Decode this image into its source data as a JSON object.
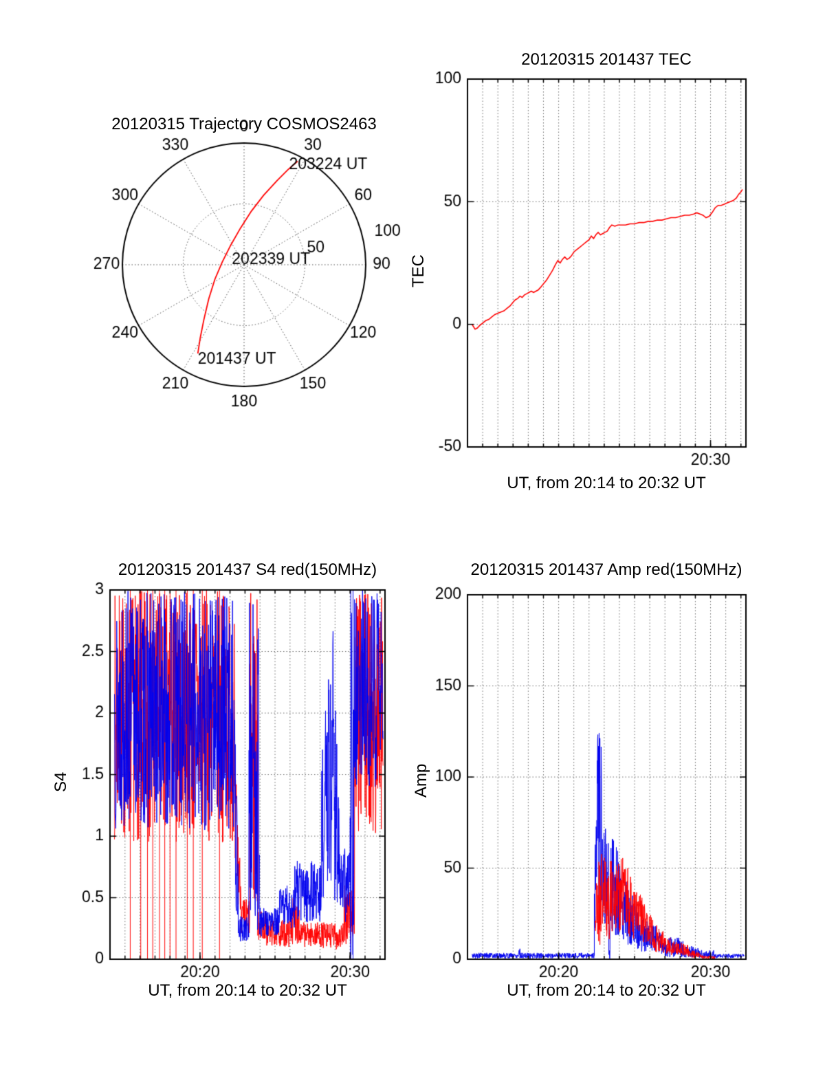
{
  "figure": {
    "background": "#ffffff"
  },
  "chart_data": [
    {
      "id": "trajectory",
      "type": "polar_trajectory",
      "title": "20120315 Trajectory COSMOS2463",
      "line_color": "#ff0000",
      "max_radius": 100,
      "azimuth_ticks_deg": [
        0,
        30,
        60,
        90,
        120,
        150,
        180,
        210,
        240,
        270,
        300,
        330
      ],
      "radial_ticks": [
        50,
        100
      ],
      "radial_label_azimuth_deg": 77,
      "annotations": [
        {
          "text": "203224 UT",
          "x": 37,
          "y": 82
        },
        {
          "text": "202339 UT",
          "x": -10,
          "y": 4
        },
        {
          "text": "201437 UT",
          "x": -38,
          "y": -78
        }
      ],
      "trajectory_points": [
        [
          -38,
          -73
        ],
        [
          -36,
          -60
        ],
        [
          -33,
          -45
        ],
        [
          -29,
          -28
        ],
        [
          -24,
          -12
        ],
        [
          -18,
          2
        ],
        [
          -11,
          16
        ],
        [
          -3,
          30
        ],
        [
          6,
          44
        ],
        [
          16,
          57
        ],
        [
          27,
          69
        ],
        [
          36,
          78
        ],
        [
          44,
          85
        ]
      ]
    },
    {
      "id": "tec",
      "type": "line",
      "title": "20120315 201437 TEC",
      "ylabel": "TEC",
      "xlabel": "UT, from 20:14 to 20:32 UT",
      "x_min": 14,
      "x_max": 32.33,
      "y_min": -50,
      "y_max": 100,
      "grid": true,
      "h_gridlines": [
        0,
        50
      ],
      "yticks": [
        {
          "value": -50,
          "label": "-50"
        },
        {
          "value": 0,
          "label": "0"
        },
        {
          "value": 50,
          "label": "50"
        },
        {
          "value": 100,
          "label": "100"
        }
      ],
      "xticks": [
        {
          "value": 30,
          "label": "20:30"
        }
      ],
      "series": [
        {
          "name": "TEC",
          "color": "#ff0000",
          "width": 1.6,
          "x": [
            14.3,
            14.4,
            14.5,
            14.65,
            14.8,
            15.0,
            15.2,
            15.4,
            15.6,
            15.8,
            16.0,
            16.2,
            16.4,
            16.6,
            16.8,
            17.0,
            17.15,
            17.3,
            17.45,
            17.6,
            17.75,
            17.9,
            18.05,
            18.2,
            18.35,
            18.5,
            18.65,
            18.8,
            19.0,
            19.2,
            19.4,
            19.6,
            19.8,
            19.95,
            20.1,
            20.25,
            20.4,
            20.55,
            20.7,
            20.85,
            21.0,
            21.2,
            21.4,
            21.6,
            21.8,
            22.0,
            22.15,
            22.3,
            22.45,
            22.6,
            22.75,
            22.9,
            23.05,
            23.2,
            23.35,
            23.5,
            23.7,
            23.9,
            24.1,
            24.4,
            24.7,
            25.0,
            25.3,
            25.6,
            25.9,
            26.2,
            26.5,
            26.8,
            27.1,
            27.4,
            27.7,
            28.0,
            28.3,
            28.6,
            28.9,
            29.1,
            29.3,
            29.5,
            29.7,
            29.9,
            30.1,
            30.3,
            30.5,
            30.7,
            30.9,
            31.1,
            31.3,
            31.5,
            31.7,
            31.85,
            32.0,
            32.1
          ],
          "y": [
            0,
            -1,
            -2,
            -1.5,
            -0.5,
            0.5,
            1.5,
            2,
            3,
            4,
            4.5,
            5,
            5.5,
            6.5,
            7.5,
            9,
            10,
            10.5,
            11.5,
            11,
            12,
            12.5,
            13,
            13.5,
            13,
            13.5,
            14,
            15,
            16.5,
            18,
            20,
            22,
            24.5,
            26,
            25,
            26.5,
            27.5,
            26.5,
            27,
            28,
            29.5,
            30.5,
            31.5,
            32.5,
            33.5,
            34.5,
            36,
            35,
            36.5,
            37.5,
            36.5,
            37,
            37.5,
            38,
            39.5,
            40.5,
            40,
            40.5,
            40.5,
            40.5,
            41,
            41,
            41.5,
            41.5,
            42,
            42,
            42.5,
            42.5,
            43,
            43.5,
            43.5,
            44,
            44.5,
            44.5,
            45,
            45.5,
            45,
            44.5,
            43.5,
            44,
            45.5,
            47.5,
            48.5,
            48.5,
            49,
            49.5,
            50,
            50.5,
            51.5,
            53,
            54,
            55
          ]
        }
      ]
    },
    {
      "id": "s4",
      "type": "noisy",
      "title": "20120315 201437 S4 red(150MHz)",
      "ylabel": "S4",
      "xlabel": "UT, from 20:14 to 20:32 UT",
      "x_min": 14,
      "x_max": 32.33,
      "y_min": 0,
      "y_max": 3,
      "grid": true,
      "h_gridlines": [
        0.5,
        1,
        1.5,
        2,
        2.5
      ],
      "yticks": [
        {
          "value": 0,
          "label": "0"
        },
        {
          "value": 0.5,
          "label": "0.5"
        },
        {
          "value": 1,
          "label": "1"
        },
        {
          "value": 1.5,
          "label": "1.5"
        },
        {
          "value": 2,
          "label": "2"
        },
        {
          "value": 2.5,
          "label": "2.5"
        },
        {
          "value": 3,
          "label": "3"
        }
      ],
      "xticks": [
        {
          "value": 20,
          "label": "20:20"
        },
        {
          "value": 30,
          "label": "20:30"
        }
      ],
      "series": [
        {
          "name": "S4 red (150MHz)",
          "color": "#ff0000",
          "seed": 7,
          "segments": [
            {
              "t0": 14.3,
              "t1": 22.3,
              "min": 0.95,
              "max": 3.0
            },
            {
              "t0": 22.3,
              "t1": 22.75,
              "min": 0.4,
              "max": 1.8,
              "max1": 0.6
            },
            {
              "t0": 22.75,
              "t1": 23.3,
              "min": 0.15,
              "max": 0.5
            },
            {
              "t0": 23.3,
              "t1": 23.85,
              "min": 0.3,
              "max": 3.0
            },
            {
              "t0": 23.85,
              "t1": 24.4,
              "min": 0.15,
              "max": 0.4
            },
            {
              "t0": 24.4,
              "t1": 26.0,
              "min": 0.1,
              "max": 0.32
            },
            {
              "t0": 26.0,
              "t1": 26.6,
              "min": 0.12,
              "max": 0.5
            },
            {
              "t0": 26.6,
              "t1": 28.2,
              "min": 0.1,
              "max": 0.3
            },
            {
              "t0": 28.2,
              "t1": 29.6,
              "min": 0.08,
              "max": 0.3
            },
            {
              "t0": 29.6,
              "t1": 30.3,
              "min": 0.1,
              "max": 0.6
            },
            {
              "t0": 30.3,
              "t1": 32.2,
              "min": 1.0,
              "max": 3.0
            }
          ],
          "dropouts": [
            15.35,
            16.05,
            16.5,
            16.85,
            17.3,
            17.65,
            18.0,
            18.4,
            19.15,
            19.55,
            20.15,
            21.3
          ]
        },
        {
          "name": "S4 blue",
          "color": "#0000ee",
          "seed": 13,
          "segments": [
            {
              "t0": 14.3,
              "t1": 22.3,
              "min": 1.05,
              "max": 3.0
            },
            {
              "t0": 22.3,
              "t1": 22.55,
              "min": 0.3,
              "max": 2.2,
              "max1": 0.8
            },
            {
              "t0": 22.55,
              "t1": 23.25,
              "min": 0.14,
              "max": 0.35
            },
            {
              "t0": 23.25,
              "t1": 23.95,
              "min": 0.2,
              "max": 3.0
            },
            {
              "t0": 23.95,
              "t1": 25.3,
              "min": 0.18,
              "max": 0.42
            },
            {
              "t0": 25.3,
              "t1": 26.3,
              "min": 0.25,
              "max": 0.6
            },
            {
              "t0": 26.3,
              "t1": 28.1,
              "min": 0.3,
              "max": 0.8
            },
            {
              "t0": 28.1,
              "t1": 28.9,
              "min": 0.5,
              "max": 1.6,
              "max1": 2.9
            },
            {
              "t0": 28.9,
              "t1": 29.3,
              "min": 0.45,
              "max": 2.9,
              "max1": 1.0
            },
            {
              "t0": 29.3,
              "t1": 30.0,
              "min": 0.3,
              "max": 0.9
            },
            {
              "t0": 30.0,
              "t1": 30.25,
              "min": 0.0,
              "max": 3.0
            },
            {
              "t0": 30.25,
              "t1": 32.2,
              "min": 1.4,
              "max": 3.0
            }
          ],
          "dropouts": [
            30.05,
            30.2
          ]
        }
      ]
    },
    {
      "id": "amp",
      "type": "noisy",
      "title": "20120315 201437 Amp red(150MHz)",
      "ylabel": "Amp",
      "xlabel": "UT, from 20:14 to 20:32 UT",
      "x_min": 14,
      "x_max": 32.33,
      "y_min": 0,
      "y_max": 200,
      "grid": true,
      "h_gridlines": [
        50,
        100,
        150
      ],
      "yticks": [
        {
          "value": 0,
          "label": "0"
        },
        {
          "value": 50,
          "label": "50"
        },
        {
          "value": 100,
          "label": "100"
        },
        {
          "value": 150,
          "label": "150"
        },
        {
          "value": 200,
          "label": "200"
        }
      ],
      "xticks": [
        {
          "value": 20,
          "label": "20:20"
        },
        {
          "value": 30,
          "label": "20:30"
        }
      ],
      "series": [
        {
          "name": "Amp blue",
          "color": "#0000ee",
          "seed": 5,
          "segments": [
            {
              "t0": 14.3,
              "t1": 17.35,
              "min": 0.5,
              "max": 3.5
            },
            {
              "t0": 17.35,
              "t1": 17.45,
              "min": 1,
              "max": 7
            },
            {
              "t0": 17.45,
              "t1": 22.35,
              "min": 0.5,
              "max": 3.5
            },
            {
              "t0": 22.35,
              "t1": 22.55,
              "min": 1,
              "max": 60,
              "max1": 110
            },
            {
              "t0": 22.55,
              "t1": 22.85,
              "min": 25,
              "max": 127
            },
            {
              "t0": 22.85,
              "t1": 23.3,
              "min": 18,
              "max": 95,
              "max1": 75
            },
            {
              "t0": 23.3,
              "t1": 23.38,
              "min": 0,
              "max": 6
            },
            {
              "t0": 23.38,
              "t1": 24.2,
              "min": 12,
              "max": 75,
              "max1": 50
            },
            {
              "t0": 24.2,
              "t1": 25.2,
              "min": 8,
              "max": 48,
              "max1": 30
            },
            {
              "t0": 25.2,
              "t1": 26.2,
              "min": 4,
              "max": 26,
              "max1": 18
            },
            {
              "t0": 26.2,
              "t1": 27.0,
              "min": 3,
              "max": 20,
              "max1": 14
            },
            {
              "t0": 27.0,
              "t1": 28.2,
              "min": 1,
              "max": 12
            },
            {
              "t0": 28.2,
              "t1": 29.2,
              "min": 1,
              "max": 9,
              "max1": 6
            },
            {
              "t0": 29.2,
              "t1": 30.2,
              "min": 0.5,
              "max": 5
            },
            {
              "t0": 30.2,
              "t1": 32.2,
              "min": 0.5,
              "max": 3
            }
          ]
        },
        {
          "name": "Amp red (150MHz)",
          "color": "#ff0000",
          "seed": 21,
          "segments": [
            {
              "t0": 22.4,
              "t1": 22.75,
              "min": 5,
              "max": 40,
              "max1": 65
            },
            {
              "t0": 22.75,
              "t1": 23.4,
              "min": 10,
              "max": 65,
              "max1": 50
            },
            {
              "t0": 23.4,
              "t1": 24.1,
              "min": 15,
              "max": 55
            },
            {
              "t0": 24.1,
              "t1": 24.6,
              "min": 18,
              "max": 62,
              "max1": 50
            },
            {
              "t0": 24.6,
              "t1": 25.5,
              "min": 10,
              "max": 48,
              "max1": 35
            },
            {
              "t0": 25.5,
              "t1": 26.3,
              "min": 6,
              "max": 35,
              "max1": 22
            },
            {
              "t0": 26.3,
              "t1": 27.3,
              "min": 3,
              "max": 20,
              "max1": 12
            },
            {
              "t0": 27.3,
              "t1": 28.5,
              "min": 2,
              "max": 12,
              "max1": 8
            },
            {
              "t0": 28.5,
              "t1": 29.5,
              "min": 0.5,
              "max": 6,
              "max1": 3
            },
            {
              "t0": 29.5,
              "t1": 30.3,
              "min": 0,
              "max": 2
            }
          ]
        }
      ]
    }
  ]
}
